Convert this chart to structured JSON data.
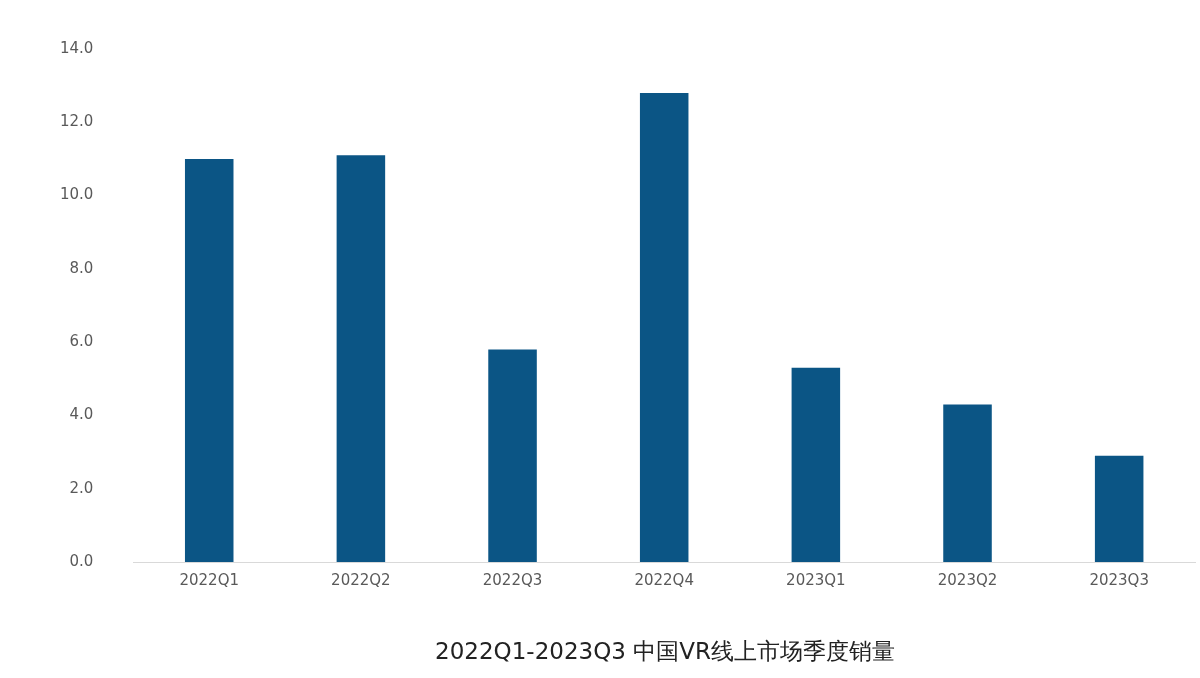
{
  "chart_data": {
    "type": "bar",
    "title": "2022Q1-2023Q3 中国VR线上市场季度销量",
    "categories": [
      "2022Q1",
      "2022Q2",
      "2022Q3",
      "2022Q4",
      "2023Q1",
      "2023Q2",
      "2023Q3"
    ],
    "values": [
      11.0,
      11.1,
      5.8,
      12.8,
      5.3,
      4.3,
      2.9
    ],
    "color": "#0b5585",
    "ylim": [
      0,
      14
    ],
    "yticks": [
      {
        "value": 0,
        "label": "0.0"
      },
      {
        "value": 2,
        "label": "2.0"
      },
      {
        "value": 4,
        "label": "4.0"
      },
      {
        "value": 6,
        "label": "6.0"
      },
      {
        "value": 8,
        "label": "8.0"
      },
      {
        "value": 10,
        "label": "10.0"
      },
      {
        "value": 12,
        "label": "12.0"
      },
      {
        "value": 14,
        "label": "14.0"
      }
    ],
    "grid": false,
    "legend": false
  }
}
